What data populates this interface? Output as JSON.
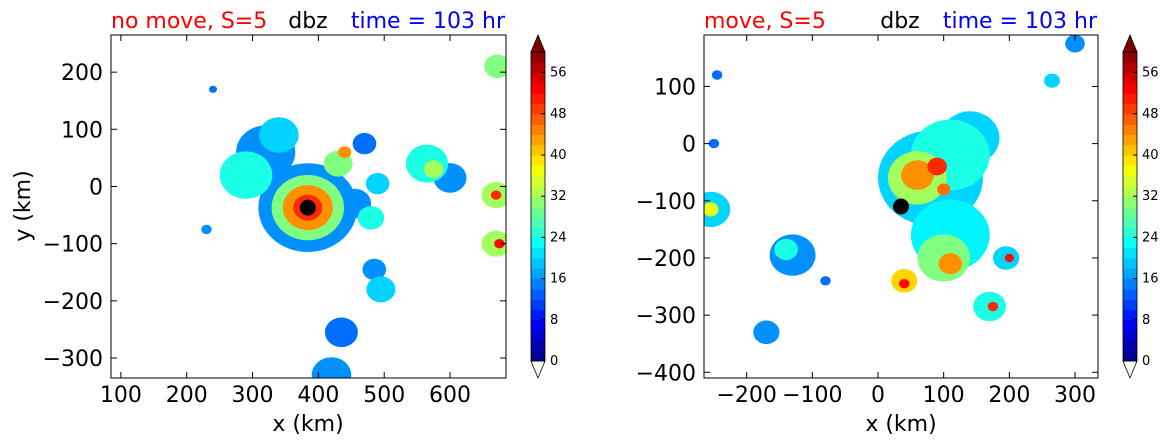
{
  "colors": {
    "left_title": "#ff0000",
    "mid_title": "#000000",
    "right_title": "#0000ff",
    "center_marker": "#000000"
  },
  "colorbar": {
    "levels": [
      0,
      2,
      4,
      6,
      8,
      10,
      12,
      14,
      16,
      18,
      20,
      22,
      24,
      26,
      28,
      30,
      32,
      34,
      36,
      38,
      40,
      42,
      44,
      46,
      48,
      50,
      52,
      54,
      56,
      58,
      60
    ],
    "tick_labels": [
      "0",
      "8",
      "16",
      "24",
      "32",
      "40",
      "48",
      "56"
    ],
    "extend": "both",
    "colormap": "jet"
  },
  "chart_data": [
    {
      "type": "heatmap",
      "title_left": "no move, S=5",
      "title_mid": "dbz",
      "title_right": "time = 103 hr",
      "xlabel": "x (km)",
      "ylabel": "y (km)",
      "xlim": [
        85,
        685
      ],
      "ylim": [
        -335,
        265
      ],
      "x_ticks": [
        100,
        200,
        300,
        400,
        500,
        600
      ],
      "y_ticks": [
        200,
        100,
        0,
        -100,
        -200,
        -300
      ],
      "x_tick_labels": [
        "100",
        "200",
        "300",
        "400",
        "500",
        "600"
      ],
      "y_tick_labels": [
        "200",
        "100",
        "0",
        "−100",
        "−200",
        "−300"
      ],
      "center": [
        384,
        -37
      ],
      "cells": [
        {
          "x": 384,
          "y": -37,
          "r": 75,
          "dbz": 16
        },
        {
          "x": 384,
          "y": -37,
          "r": 55,
          "dbz": 30
        },
        {
          "x": 384,
          "y": -37,
          "r": 38,
          "dbz": 44
        },
        {
          "x": 384,
          "y": -37,
          "r": 22,
          "dbz": 50
        },
        {
          "x": 320,
          "y": 60,
          "r": 45,
          "dbz": 16
        },
        {
          "x": 290,
          "y": 20,
          "r": 40,
          "dbz": 24
        },
        {
          "x": 340,
          "y": 90,
          "r": 30,
          "dbz": 20
        },
        {
          "x": 430,
          "y": 40,
          "r": 22,
          "dbz": 30
        },
        {
          "x": 440,
          "y": 60,
          "r": 10,
          "dbz": 44
        },
        {
          "x": 455,
          "y": -30,
          "r": 25,
          "dbz": 16
        },
        {
          "x": 480,
          "y": -55,
          "r": 20,
          "dbz": 24
        },
        {
          "x": 490,
          "y": 5,
          "r": 18,
          "dbz": 20
        },
        {
          "x": 470,
          "y": 75,
          "r": 18,
          "dbz": 14
        },
        {
          "x": 565,
          "y": 40,
          "r": 32,
          "dbz": 24
        },
        {
          "x": 575,
          "y": 30,
          "r": 15,
          "dbz": 32
        },
        {
          "x": 600,
          "y": 15,
          "r": 25,
          "dbz": 16
        },
        {
          "x": 670,
          "y": -15,
          "r": 22,
          "dbz": 32
        },
        {
          "x": 670,
          "y": -15,
          "r": 8,
          "dbz": 50
        },
        {
          "x": 670,
          "y": -100,
          "r": 22,
          "dbz": 32
        },
        {
          "x": 675,
          "y": -100,
          "r": 8,
          "dbz": 52
        },
        {
          "x": 672,
          "y": 210,
          "r": 20,
          "dbz": 30
        },
        {
          "x": 485,
          "y": -145,
          "r": 18,
          "dbz": 16
        },
        {
          "x": 495,
          "y": -180,
          "r": 22,
          "dbz": 20
        },
        {
          "x": 435,
          "y": -255,
          "r": 25,
          "dbz": 14
        },
        {
          "x": 420,
          "y": -330,
          "r": 30,
          "dbz": 16
        },
        {
          "x": 230,
          "y": -75,
          "r": 8,
          "dbz": 16
        },
        {
          "x": 240,
          "y": 170,
          "r": 6,
          "dbz": 14
        }
      ]
    },
    {
      "type": "heatmap",
      "title_left": "move, S=5",
      "title_mid": "dbz",
      "title_right": "time = 103 hr",
      "xlabel": "x (km)",
      "ylabel": "",
      "xlim": [
        -265,
        335
      ],
      "ylim": [
        -410,
        190
      ],
      "x_ticks": [
        -200,
        -100,
        0,
        100,
        200,
        300
      ],
      "y_ticks": [
        100,
        0,
        -100,
        -200,
        -300,
        -400
      ],
      "x_tick_labels": [
        "−200",
        "−100",
        "0",
        "100",
        "200",
        "300"
      ],
      "y_tick_labels": [
        "100",
        "0",
        "−100",
        "−200",
        "−300",
        "−400"
      ],
      "center": [
        35,
        -110
      ],
      "cells": [
        {
          "x": 80,
          "y": -60,
          "r": 80,
          "dbz": 20
        },
        {
          "x": 110,
          "y": -20,
          "r": 60,
          "dbz": 24
        },
        {
          "x": 140,
          "y": 10,
          "r": 45,
          "dbz": 20
        },
        {
          "x": 60,
          "y": -60,
          "r": 45,
          "dbz": 32
        },
        {
          "x": 60,
          "y": -55,
          "r": 25,
          "dbz": 44
        },
        {
          "x": 90,
          "y": -40,
          "r": 15,
          "dbz": 50
        },
        {
          "x": 110,
          "y": -160,
          "r": 60,
          "dbz": 22
        },
        {
          "x": 100,
          "y": -200,
          "r": 40,
          "dbz": 30
        },
        {
          "x": 110,
          "y": -210,
          "r": 18,
          "dbz": 44
        },
        {
          "x": 40,
          "y": -240,
          "r": 20,
          "dbz": 40
        },
        {
          "x": 40,
          "y": -245,
          "r": 8,
          "dbz": 52
        },
        {
          "x": 195,
          "y": -200,
          "r": 20,
          "dbz": 20
        },
        {
          "x": 200,
          "y": -200,
          "r": 7,
          "dbz": 52
        },
        {
          "x": 170,
          "y": -285,
          "r": 25,
          "dbz": 24
        },
        {
          "x": 175,
          "y": -285,
          "r": 8,
          "dbz": 50
        },
        {
          "x": -130,
          "y": -195,
          "r": 35,
          "dbz": 16
        },
        {
          "x": -140,
          "y": -185,
          "r": 18,
          "dbz": 24
        },
        {
          "x": -170,
          "y": -330,
          "r": 20,
          "dbz": 16
        },
        {
          "x": -255,
          "y": -115,
          "r": 30,
          "dbz": 20
        },
        {
          "x": -255,
          "y": -115,
          "r": 12,
          "dbz": 36
        },
        {
          "x": -250,
          "y": 0,
          "r": 8,
          "dbz": 14
        },
        {
          "x": 265,
          "y": 110,
          "r": 12,
          "dbz": 20
        },
        {
          "x": 300,
          "y": 175,
          "r": 15,
          "dbz": 16
        },
        {
          "x": 100,
          "y": -80,
          "r": 10,
          "dbz": 46
        },
        {
          "x": -245,
          "y": 120,
          "r": 8,
          "dbz": 14
        },
        {
          "x": -80,
          "y": -240,
          "r": 8,
          "dbz": 14
        }
      ]
    }
  ]
}
